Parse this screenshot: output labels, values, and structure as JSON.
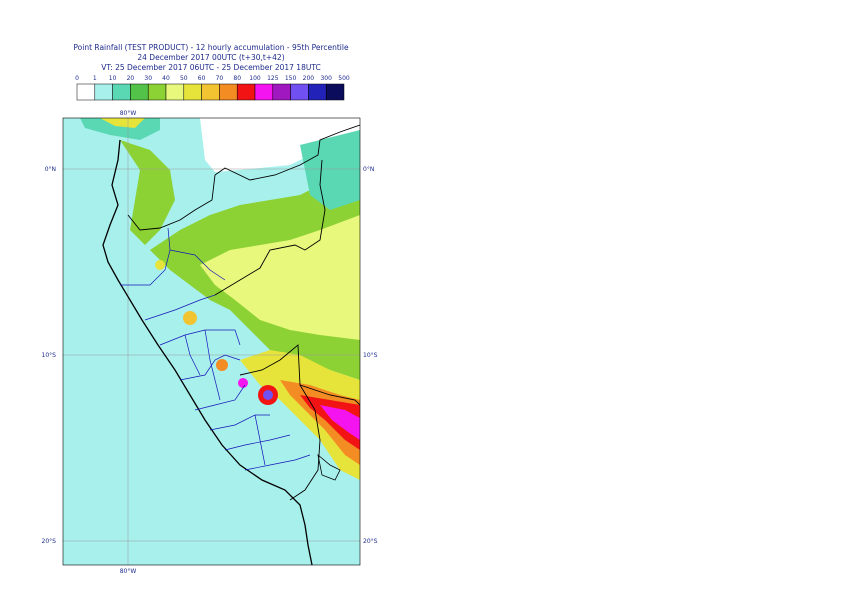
{
  "header": {
    "line1": "Point Rainfall (TEST PRODUCT) - 12 hourly accumulation - 95th Percentile",
    "line2": "24 December 2017 00UTC (t+30,t+42)",
    "line3": "VT: 25 December 2017 06UTC - 25 December 2017 18UTC"
  },
  "legend": {
    "thresholds": [
      "0",
      "1",
      "10",
      "20",
      "30",
      "40",
      "50",
      "60",
      "70",
      "80",
      "100",
      "125",
      "150",
      "200",
      "300",
      "500"
    ],
    "colors": [
      "#ffffff",
      "#a8f0ec",
      "#5ad8b4",
      "#52c248",
      "#8cd234",
      "#e8f87c",
      "#e6e43a",
      "#f2c432",
      "#f48c24",
      "#f21414",
      "#f414f0",
      "#a018c0",
      "#7050f0",
      "#2222b8",
      "#0c0c5c"
    ]
  },
  "map": {
    "lat_labels_left": [
      "0°N",
      "10°S",
      "20°S"
    ],
    "lat_labels_right": [
      "0°N",
      "10°S",
      "20°S"
    ],
    "lon_label_top": "80°W",
    "lon_label_bottom": "80°W"
  }
}
